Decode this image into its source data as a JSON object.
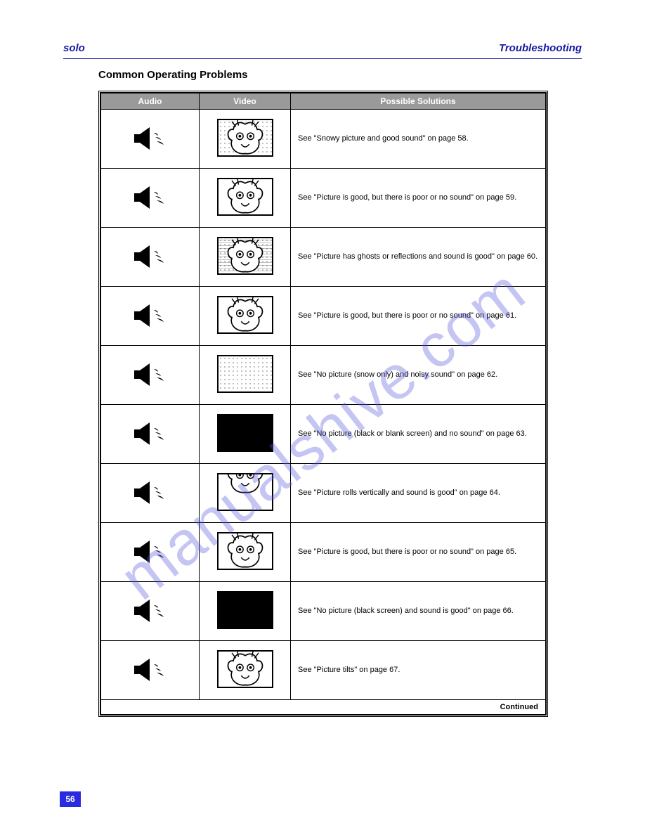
{
  "header": {
    "left": "solo",
    "right": "Troubleshooting"
  },
  "section_title": "Common Operating Problems",
  "watermark": "manualshive.com",
  "table": {
    "columns": [
      "Audio",
      "Video",
      "Possible Solutions"
    ],
    "rows": [
      {
        "audio": "on",
        "video": "creature_snow_light",
        "desc": "See \"Snowy picture and good sound\" on page 58."
      },
      {
        "audio": "on",
        "video": "creature_clear",
        "desc": "See \"Picture is good, but there is poor or no sound\" on page 59."
      },
      {
        "audio": "on",
        "video": "creature_snow_dash",
        "desc": "See \"Picture has ghosts or reflections and sound is good\" on page 60."
      },
      {
        "audio": "off",
        "video": "creature_clear",
        "desc": "See \"Picture is good, but there is poor or no sound\" on page 61."
      },
      {
        "audio": "on",
        "video": "snow_only",
        "desc": "See \"No picture (snow only) and noisy sound\" on page 62."
      },
      {
        "audio": "off",
        "video": "black",
        "desc": "See \"No picture (black or blank screen) and no sound\" on page 63."
      },
      {
        "audio": "on",
        "video": "creature_rolled",
        "desc": "See \"Picture rolls vertically and sound is good\" on page 64."
      },
      {
        "audio": "off",
        "video": "creature_clear",
        "desc": "See \"Picture is good, but there is poor or no sound\" on page 65."
      },
      {
        "audio": "on",
        "video": "black",
        "desc": "See \"No picture (black screen) and sound is good\" on page 66."
      },
      {
        "audio": "on",
        "video": "creature_clear",
        "desc": "See \"Picture tilts\" on page 67."
      }
    ],
    "continued": "Continued"
  },
  "page_number": "56"
}
